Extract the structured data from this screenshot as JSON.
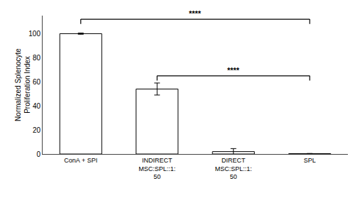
{
  "chart_data": {
    "type": "bar",
    "categories": [
      "ConA + SPI",
      "INDIRECT\nMSC:SPL::1:\n50",
      "DIRECT\nMSC:SPL::1:\n50",
      "SPL"
    ],
    "values": [
      100,
      54,
      2,
      0.3
    ],
    "errors": [
      0.5,
      5,
      2.5,
      0.15
    ],
    "color": "#ffffff",
    "ylabel": "Normalized Splenocyte\nProliferation Index",
    "ylim": [
      0,
      115
    ],
    "yticks": [
      0,
      20,
      40,
      60,
      80,
      100
    ],
    "grid": false,
    "annotations": [
      {
        "text": "****",
        "x1": 0,
        "x2": 3,
        "y": 112,
        "y_drop": 108
      },
      {
        "text": "****",
        "x1": 1,
        "x2": 3,
        "y": 65,
        "y_drop": 61
      }
    ]
  }
}
